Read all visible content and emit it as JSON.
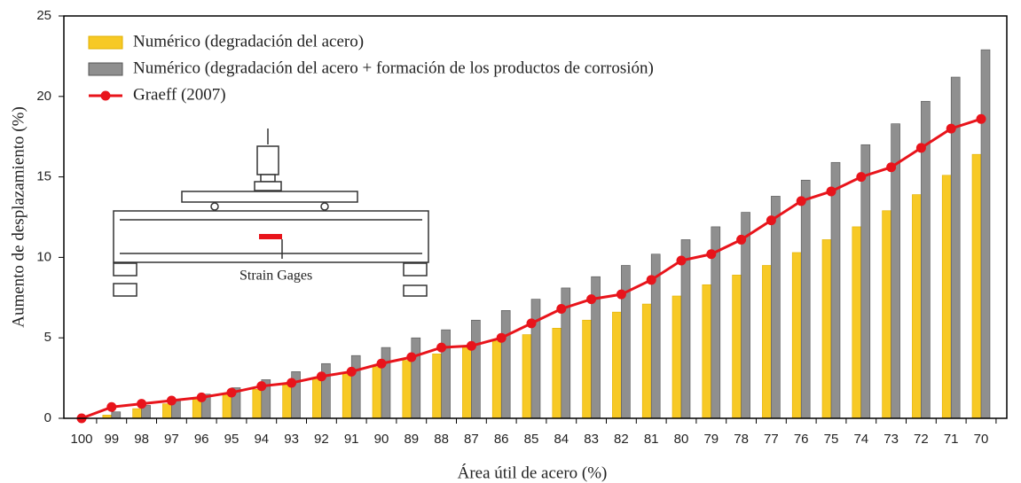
{
  "chart_data": {
    "type": "bar",
    "x_label": "Área útil de acero (%)",
    "y_label": "Aumento de desplazamiento (%)",
    "categories": [
      "100",
      "99",
      "98",
      "97",
      "96",
      "95",
      "94",
      "93",
      "92",
      "91",
      "90",
      "89",
      "88",
      "87",
      "86",
      "85",
      "84",
      "83",
      "82",
      "81",
      "80",
      "79",
      "78",
      "77",
      "76",
      "75",
      "74",
      "73",
      "72",
      "71",
      "70"
    ],
    "series": [
      {
        "name": "Numérico (degradación del acero)",
        "type": "bar",
        "color": "#f7c925",
        "values": [
          0,
          0.2,
          0.6,
          0.9,
          1.2,
          1.5,
          1.8,
          2.1,
          2.5,
          2.8,
          3.2,
          3.6,
          4.0,
          4.4,
          4.8,
          5.2,
          5.6,
          6.1,
          6.6,
          7.1,
          7.6,
          8.3,
          8.9,
          9.5,
          10.3,
          11.1,
          11.9,
          12.9,
          13.9,
          15.1,
          16.4
        ]
      },
      {
        "name": "Numérico (degradación del acero + formación de los productos de corrosión)",
        "type": "bar",
        "color": "#8f8f8f",
        "values": [
          0,
          0.4,
          0.8,
          1.1,
          1.5,
          1.9,
          2.4,
          2.9,
          3.4,
          3.9,
          4.4,
          5.0,
          5.5,
          6.1,
          6.7,
          7.4,
          8.1,
          8.8,
          9.5,
          10.2,
          11.1,
          11.9,
          12.8,
          13.8,
          14.8,
          15.9,
          17.0,
          18.3,
          19.7,
          21.2,
          22.9
        ]
      },
      {
        "name": "Graeff (2007)",
        "type": "line",
        "color": "#e8141b",
        "values": [
          0,
          0.7,
          0.9,
          1.1,
          1.3,
          1.6,
          2.0,
          2.2,
          2.6,
          2.9,
          3.4,
          3.8,
          4.4,
          4.5,
          5.0,
          5.9,
          6.8,
          7.4,
          7.7,
          8.6,
          9.8,
          10.2,
          11.1,
          12.3,
          13.5,
          14.1,
          15.0,
          15.6,
          16.8,
          18.0,
          18.6
        ]
      }
    ],
    "ylim": [
      0,
      25
    ],
    "yticks": [
      0,
      5,
      10,
      15,
      20,
      25
    ],
    "legend": "upper left",
    "annotations": [
      "Strain Gages"
    ]
  }
}
